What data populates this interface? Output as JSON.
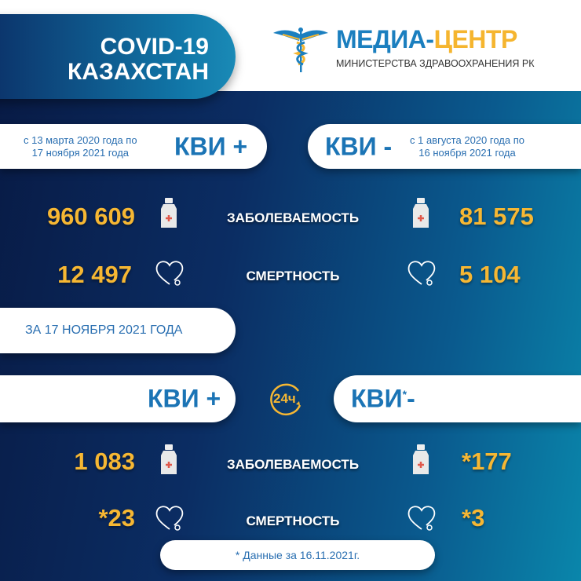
{
  "header": {
    "title_line1": "COVID-19",
    "title_line2": "КАЗАХСТАН"
  },
  "logo": {
    "title_blue": "МЕДИА-",
    "title_orange": "ЦЕНТР",
    "subtitle": "МИНИСТЕРСТВА ЗДРАВООХРАНЕНИЯ РК",
    "icon": "caduceus-icon"
  },
  "total": {
    "positive": {
      "label": "КВИ +",
      "range_line1": "с 13 марта 2020 года по",
      "range_line2": "17 ноября 2021 года",
      "cases": "960 609",
      "deaths": "12 497"
    },
    "negative": {
      "label": "КВИ -",
      "range_line1": "с 1 августа 2020 года по",
      "range_line2": "16 ноября 2021 года",
      "cases": "81 575",
      "deaths": "5 104"
    }
  },
  "labels": {
    "cases": "ЗАБОЛЕВАЕМОСТЬ",
    "deaths": "СМЕРТНОСТЬ"
  },
  "daily": {
    "date_label": "ЗА 17 НОЯБРЯ 2021 ГОДА",
    "badge": "24ч",
    "positive": {
      "label": "КВИ +",
      "cases": "1 083",
      "deaths": "*23"
    },
    "negative": {
      "label_main": "КВИ",
      "label_star": "*",
      "label_sign": "-",
      "cases": "*177",
      "deaths": "*3"
    }
  },
  "footnote": "* Данные за 16.11.2021г.",
  "colors": {
    "accent": "#f6b733",
    "brand_blue": "#1b74b5",
    "bg_dark": "#081a44",
    "bg_teal": "#0a86ab"
  }
}
